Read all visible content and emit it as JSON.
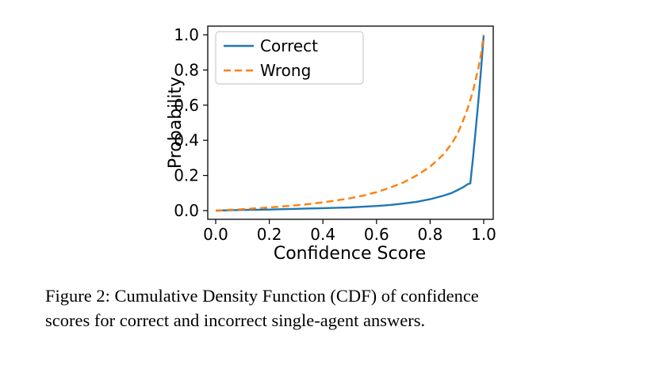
{
  "caption": {
    "line1": "Figure 2: Cumulative Density Function (CDF) of confidence",
    "line2": "scores for correct and incorrect single-agent answers."
  },
  "chart_data": {
    "type": "line",
    "title": "",
    "xlabel": "Confidence Score",
    "ylabel": "Probability",
    "xlim": [
      0.0,
      1.0
    ],
    "ylim": [
      0.0,
      1.0
    ],
    "xticks": [
      0.0,
      0.2,
      0.4,
      0.6,
      0.8,
      1.0
    ],
    "yticks": [
      0.0,
      0.2,
      0.4,
      0.6,
      0.8,
      1.0
    ],
    "grid": false,
    "legend_position": "upper left",
    "legend_entries": [
      "Correct",
      "Wrong"
    ],
    "series": [
      {
        "name": "Correct",
        "color": "#1f77b4",
        "dash": "solid",
        "points": [
          [
            0.0,
            0.0
          ],
          [
            0.05,
            0.002
          ],
          [
            0.1,
            0.004
          ],
          [
            0.15,
            0.005
          ],
          [
            0.2,
            0.006
          ],
          [
            0.25,
            0.008
          ],
          [
            0.3,
            0.01
          ],
          [
            0.35,
            0.012
          ],
          [
            0.4,
            0.014
          ],
          [
            0.45,
            0.016
          ],
          [
            0.5,
            0.018
          ],
          [
            0.55,
            0.022
          ],
          [
            0.6,
            0.026
          ],
          [
            0.65,
            0.032
          ],
          [
            0.7,
            0.04
          ],
          [
            0.75,
            0.05
          ],
          [
            0.8,
            0.065
          ],
          [
            0.85,
            0.085
          ],
          [
            0.88,
            0.1
          ],
          [
            0.9,
            0.115
          ],
          [
            0.92,
            0.13
          ],
          [
            0.94,
            0.15
          ],
          [
            0.95,
            0.155
          ],
          [
            0.96,
            0.3
          ],
          [
            0.97,
            0.46
          ],
          [
            0.98,
            0.62
          ],
          [
            0.99,
            0.8
          ],
          [
            1.0,
            1.0
          ]
        ]
      },
      {
        "name": "Wrong",
        "color": "#ff7f0e",
        "dash": "dashed",
        "points": [
          [
            0.0,
            0.0
          ],
          [
            0.05,
            0.004
          ],
          [
            0.1,
            0.008
          ],
          [
            0.15,
            0.013
          ],
          [
            0.2,
            0.018
          ],
          [
            0.25,
            0.024
          ],
          [
            0.3,
            0.03
          ],
          [
            0.35,
            0.038
          ],
          [
            0.4,
            0.047
          ],
          [
            0.45,
            0.058
          ],
          [
            0.5,
            0.07
          ],
          [
            0.55,
            0.085
          ],
          [
            0.6,
            0.105
          ],
          [
            0.65,
            0.13
          ],
          [
            0.7,
            0.16
          ],
          [
            0.75,
            0.2
          ],
          [
            0.8,
            0.25
          ],
          [
            0.85,
            0.32
          ],
          [
            0.88,
            0.38
          ],
          [
            0.9,
            0.43
          ],
          [
            0.92,
            0.5
          ],
          [
            0.94,
            0.58
          ],
          [
            0.96,
            0.68
          ],
          [
            0.98,
            0.81
          ],
          [
            0.99,
            0.89
          ],
          [
            1.0,
            1.0
          ]
        ]
      }
    ]
  }
}
